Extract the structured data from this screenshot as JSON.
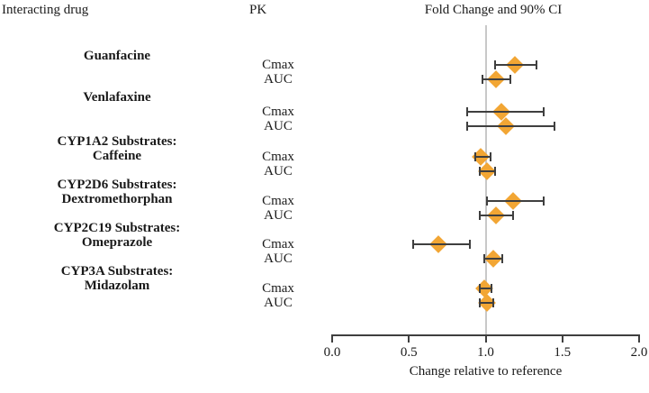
{
  "headers": {
    "interacting_drug": "Interacting drug",
    "pk": "PK",
    "fold_change": "Fold Change and 90% CI"
  },
  "chart_data": {
    "type": "forest",
    "title": "Fold Change and 90% CI",
    "xlabel": "Change relative to reference",
    "xlim": [
      0.0,
      2.0
    ],
    "xtick_labels": [
      "0.0",
      "0.5",
      "1.0",
      "1.5",
      "2.0"
    ],
    "xtick_values": [
      0,
      0.5,
      1,
      1.5,
      2
    ],
    "reference_line": 1.0,
    "grid": "off",
    "colors": {
      "marker": "#F2A634",
      "error_bar": "#3F3F3F",
      "reference_line": "#C8C8C8",
      "axis": "#3F3F3F",
      "text": "#1A1A1A"
    },
    "groups": [
      {
        "drug_lines": [
          "Guanfacine"
        ],
        "rows": [
          {
            "pk": "Cmax",
            "estimate": 1.19,
            "ci_low": 1.06,
            "ci_high": 1.33
          },
          {
            "pk": "AUC",
            "estimate": 1.07,
            "ci_low": 0.98,
            "ci_high": 1.16
          }
        ]
      },
      {
        "drug_lines": [
          "Venlafaxine"
        ],
        "rows": [
          {
            "pk": "Cmax",
            "estimate": 1.1,
            "ci_low": 0.88,
            "ci_high": 1.38
          },
          {
            "pk": "AUC",
            "estimate": 1.13,
            "ci_low": 0.88,
            "ci_high": 1.45
          }
        ]
      },
      {
        "drug_lines": [
          "CYP1A2 Substrates:",
          "Caffeine"
        ],
        "rows": [
          {
            "pk": "Cmax",
            "estimate": 0.97,
            "ci_low": 0.93,
            "ci_high": 1.03
          },
          {
            "pk": "AUC",
            "estimate": 1.01,
            "ci_low": 0.96,
            "ci_high": 1.06
          }
        ]
      },
      {
        "drug_lines": [
          "CYP2D6 Substrates:",
          "Dextromethorphan"
        ],
        "rows": [
          {
            "pk": "Cmax",
            "estimate": 1.18,
            "ci_low": 1.01,
            "ci_high": 1.38
          },
          {
            "pk": "AUC",
            "estimate": 1.07,
            "ci_low": 0.96,
            "ci_high": 1.18
          }
        ]
      },
      {
        "drug_lines": [
          "CYP2C19 Substrates:",
          "Omeprazole"
        ],
        "rows": [
          {
            "pk": "Cmax",
            "estimate": 0.69,
            "ci_low": 0.53,
            "ci_high": 0.9
          },
          {
            "pk": "AUC",
            "estimate": 1.05,
            "ci_low": 0.99,
            "ci_high": 1.11
          }
        ]
      },
      {
        "drug_lines": [
          "CYP3A Substrates:",
          "Midazolam"
        ],
        "rows": [
          {
            "pk": "Cmax",
            "estimate": 0.99,
            "ci_low": 0.96,
            "ci_high": 1.04
          },
          {
            "pk": "AUC",
            "estimate": 1.01,
            "ci_low": 0.96,
            "ci_high": 1.05
          }
        ]
      }
    ]
  }
}
